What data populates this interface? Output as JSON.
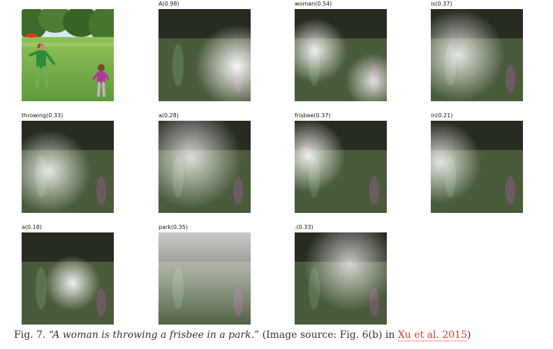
{
  "figure": {
    "panels": [
      {
        "word": "",
        "score": ""
      },
      {
        "word": "A",
        "score": "0.98"
      },
      {
        "word": "woman",
        "score": "0.54"
      },
      {
        "word": "is",
        "score": "0.37"
      },
      {
        "word": "throwing",
        "score": "0.33"
      },
      {
        "word": "a",
        "score": "0.28"
      },
      {
        "word": "frisbee",
        "score": "0.37"
      },
      {
        "word": "in",
        "score": "0.21"
      },
      {
        "word": "a",
        "score": "0.18"
      },
      {
        "word": "park",
        "score": "0.35"
      },
      {
        "word": ".",
        "score": "0.33"
      }
    ],
    "labels": {
      "p1": "A(0.98)",
      "p2": "woman(0.54)",
      "p3": "is(0.37)",
      "p4": "throwing(0.33)",
      "p5": "a(0.28)",
      "p6": "frisbee(0.37)",
      "p7": "in(0.21)",
      "p8": "a(0.18)",
      "p9": "park(0.35)",
      "p10": ".(0.33)"
    }
  },
  "caption": {
    "prefix": "Fig. 7. ",
    "quote": "“A woman is throwing a frisbee in a park.”",
    "source_prefix": " (Image source: Fig. 6(b) in ",
    "link_text": "Xu et al. 2015",
    "suffix": ")"
  },
  "colors": {
    "link": "#d93a2b",
    "grass": "#5f9a3a",
    "trees": "#3f6b2a",
    "shirt_woman": "#2e8b3a",
    "shirt_girl": "#b03a9a",
    "frisbee": "#e8341c"
  }
}
